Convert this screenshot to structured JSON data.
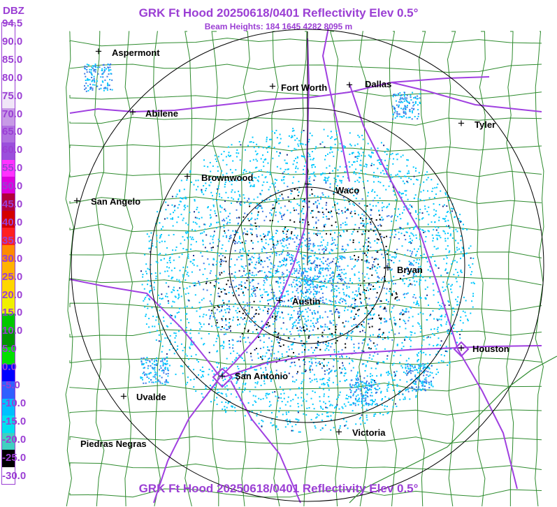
{
  "title": "GRK Ft Hood 20250618/0401 Reflectivity Elev 0.5°",
  "beam_heights": "Beam Heights: 184 1645 4282 8095 m",
  "legend": {
    "unit": "DBZ",
    "labels": [
      "94.5",
      "90.0",
      "85.0",
      "80.0",
      "75.0",
      "70.0",
      "65.0",
      "60.0",
      "55.0",
      "50.0",
      "45.0",
      "40.0",
      "35.0",
      "30.0",
      "25.0",
      "20.0",
      "15.0",
      "10.0",
      "5.0",
      "0.0",
      "-5.0",
      "-10.0",
      "-15.0",
      "-20.0",
      "-25.0",
      "-30.0"
    ],
    "colors": [
      "#ffffff",
      "#ffffff",
      "#ffffff",
      "#ffffff",
      "#f0e6f8",
      "#c79ae6",
      "#b070e0",
      "#9b4fdc",
      "#ff33ff",
      "#dd00dd",
      "#b3003b",
      "#d40000",
      "#ff2020",
      "#ff8c00",
      "#ffb400",
      "#ffd700",
      "#f0f000",
      "#00c800",
      "#009600",
      "#00e000",
      "#0000ff",
      "#3060ff",
      "#00c0ff",
      "#00e0f0",
      "#40d0c0",
      "#000000",
      "#ffffff"
    ]
  },
  "cities": [
    {
      "name": "Aspermont",
      "icon": "plus-marker-icon"
    },
    {
      "name": "Fort Worth",
      "icon": "plus-marker-icon"
    },
    {
      "name": "Dallas",
      "icon": "plus-marker-icon"
    },
    {
      "name": "Abilene",
      "icon": "plus-marker-icon"
    },
    {
      "name": "Tyler",
      "icon": "plus-marker-icon"
    },
    {
      "name": "Brownwood",
      "icon": "plus-marker-icon"
    },
    {
      "name": "Waco",
      "icon": "plus-marker-icon"
    },
    {
      "name": "San Angelo",
      "icon": "plus-marker-icon"
    },
    {
      "name": "Bryan",
      "icon": "plus-marker-icon"
    },
    {
      "name": "Austin",
      "icon": "plus-marker-icon"
    },
    {
      "name": "Houston",
      "icon": "plus-marker-icon"
    },
    {
      "name": "San Antonio",
      "icon": "plus-marker-icon"
    },
    {
      "name": "Uvalde",
      "icon": "plus-marker-icon"
    },
    {
      "name": "Victoria",
      "icon": "plus-marker-icon"
    },
    {
      "name": "Piedras Negras",
      "icon": ""
    }
  ],
  "colors": {
    "title": "#9b3fd4",
    "highway": "#a040e0",
    "county": "#2e8b2e",
    "range_ring": "#000000",
    "echo_light": "#00c8ff",
    "echo_med": "#3a78e6",
    "echo_dark": "#1a2a8a"
  }
}
